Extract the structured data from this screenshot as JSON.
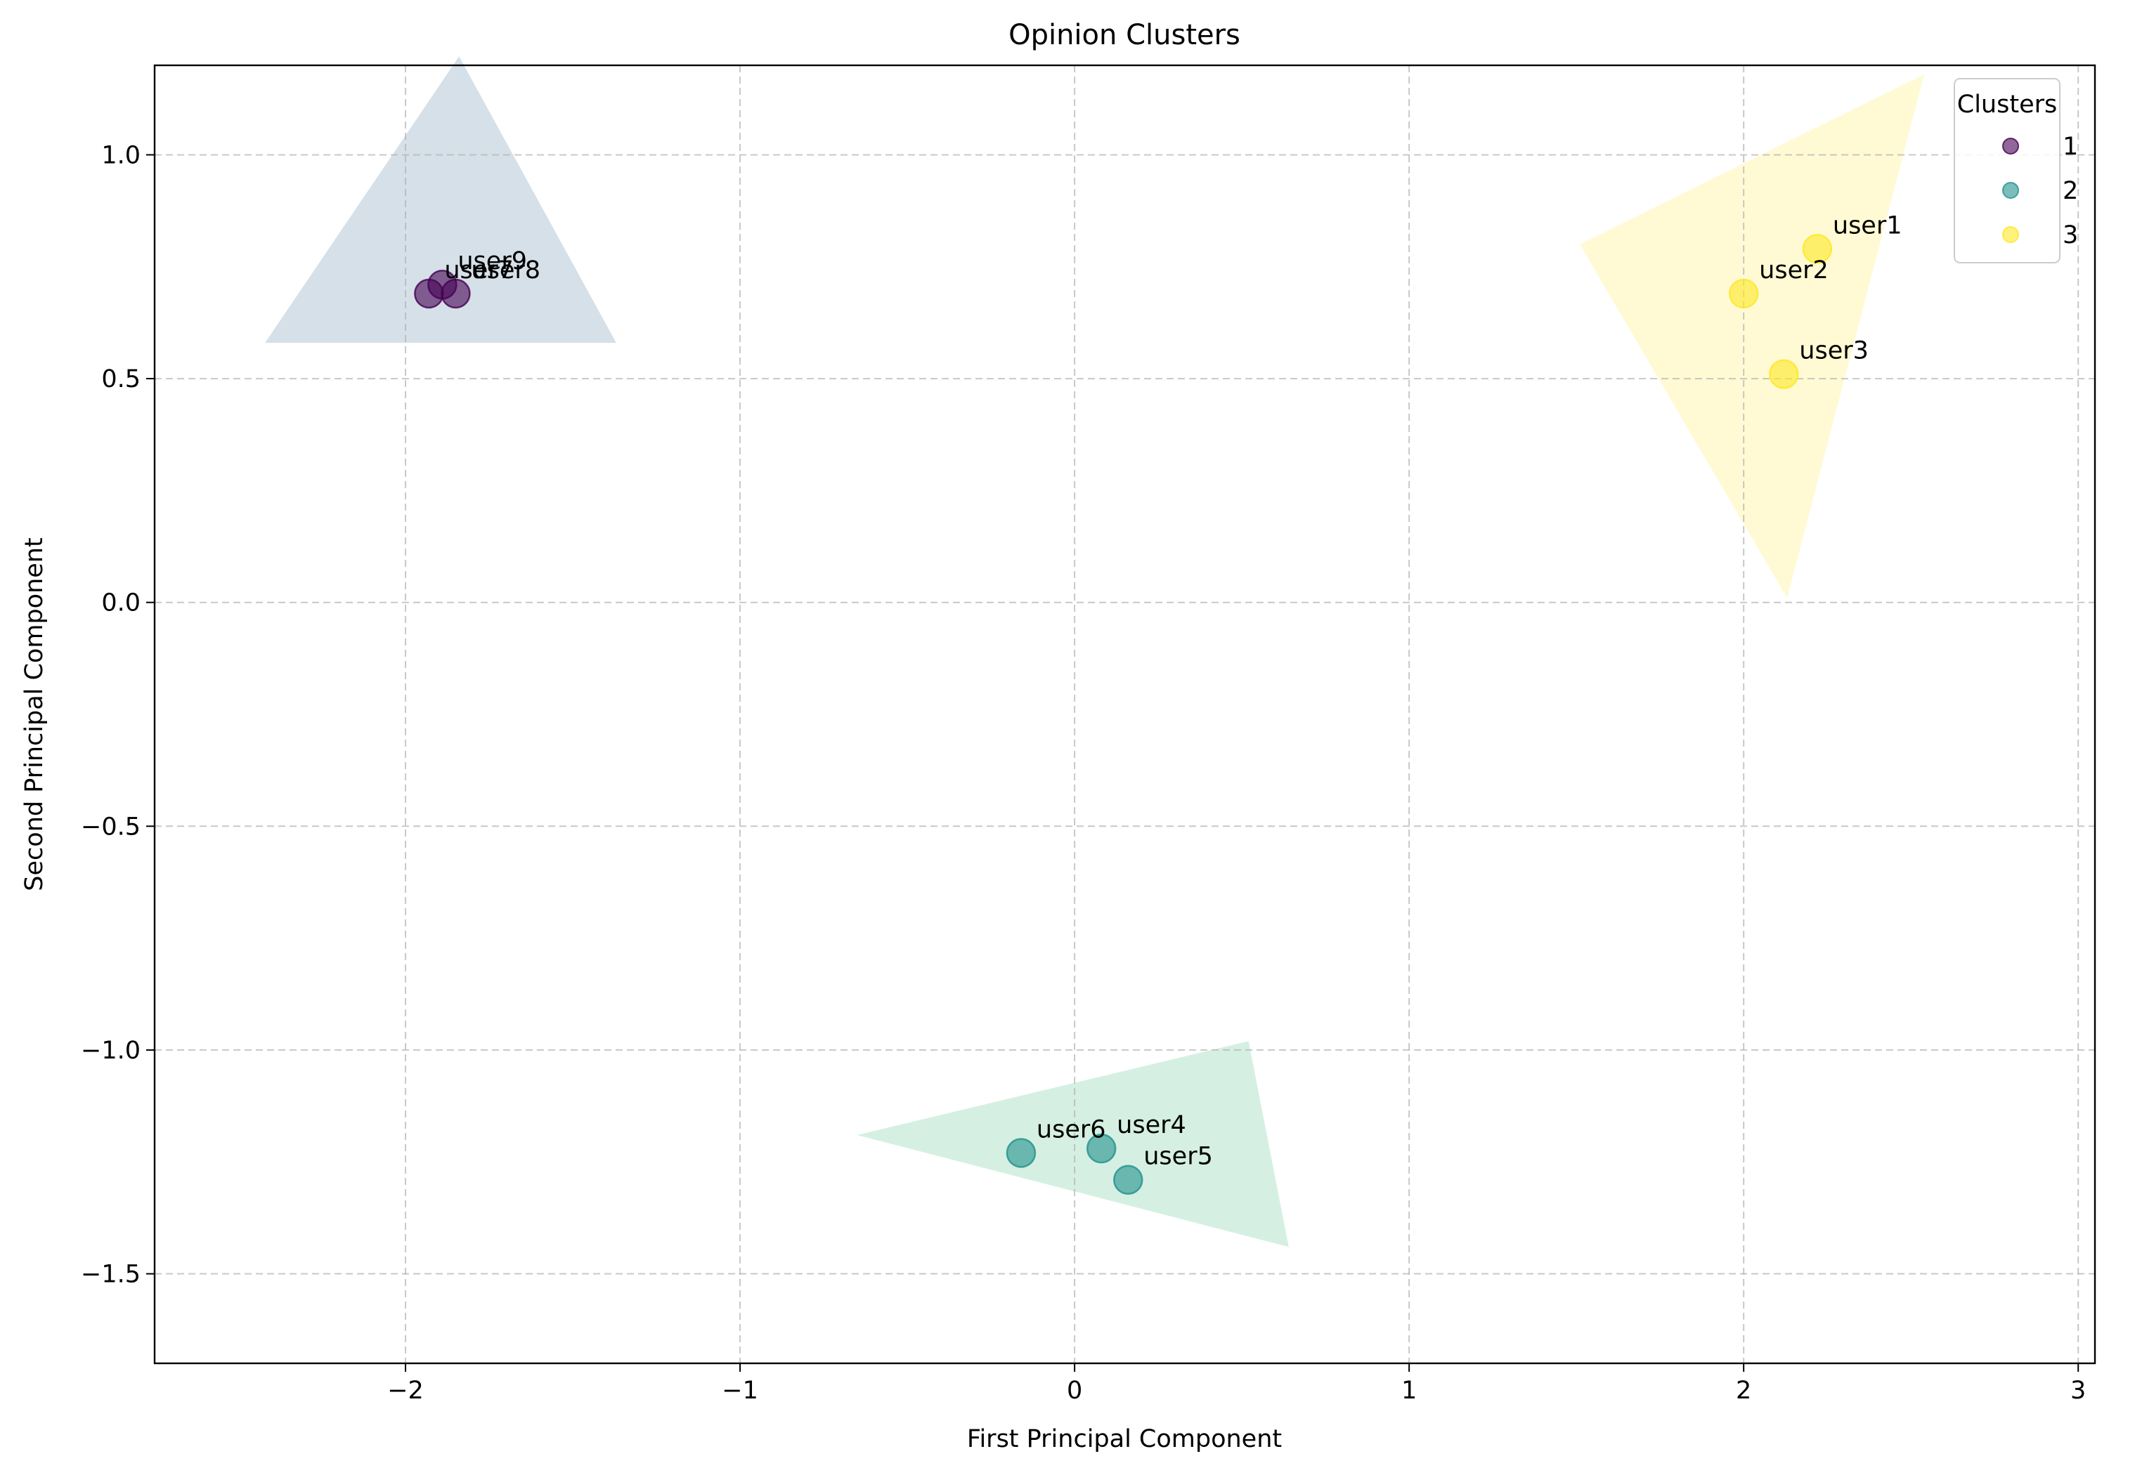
{
  "chart_data": {
    "type": "scatter",
    "title": "Opinion Clusters",
    "xlabel": "First Principal Component",
    "ylabel": "Second Principal Component",
    "xlim": [
      -2.75,
      3.05
    ],
    "ylim": [
      -1.7,
      1.2
    ],
    "x_ticks": [
      -2,
      -1,
      0,
      1,
      2,
      3
    ],
    "y_ticks": [
      -1.5,
      -1.0,
      -0.5,
      0.0,
      0.5,
      1.0
    ],
    "x_tick_labels": [
      "−2",
      "−1",
      "0",
      "1",
      "2",
      "3"
    ],
    "y_tick_labels": [
      "−1.5",
      "−1.0",
      "−0.5",
      "0.0",
      "0.5",
      "1.0"
    ],
    "grid": true,
    "legend": {
      "title": "Clusters",
      "position": "top-right",
      "entries": [
        "1",
        "2",
        "3"
      ]
    },
    "series": [
      {
        "name": "1",
        "color": "#440154",
        "hull_color": "#b5c6d6",
        "hull": [
          [
            -2.42,
            0.58
          ],
          [
            -1.84,
            1.22
          ],
          [
            -1.37,
            0.58
          ]
        ],
        "points": [
          {
            "label": "user7",
            "x": -1.93,
            "y": 0.69
          },
          {
            "label": "user8",
            "x": -1.85,
            "y": 0.69
          },
          {
            "label": "user9",
            "x": -1.89,
            "y": 0.71
          }
        ]
      },
      {
        "name": "2",
        "color": "#21918c",
        "hull_color": "#b3e3cb",
        "hull": [
          [
            -0.65,
            -1.19
          ],
          [
            0.52,
            -0.98
          ],
          [
            0.64,
            -1.44
          ]
        ],
        "points": [
          {
            "label": "user4",
            "x": 0.08,
            "y": -1.22
          },
          {
            "label": "user5",
            "x": 0.16,
            "y": -1.29
          },
          {
            "label": "user6",
            "x": -0.16,
            "y": -1.23
          }
        ]
      },
      {
        "name": "3",
        "color": "#fde725",
        "hull_color": "#fff6b0",
        "hull": [
          [
            1.51,
            0.8
          ],
          [
            2.54,
            1.18
          ],
          [
            2.13,
            0.01
          ]
        ],
        "points": [
          {
            "label": "user1",
            "x": 2.22,
            "y": 0.79
          },
          {
            "label": "user2",
            "x": 2.0,
            "y": 0.69
          },
          {
            "label": "user3",
            "x": 2.12,
            "y": 0.51
          }
        ]
      }
    ]
  }
}
